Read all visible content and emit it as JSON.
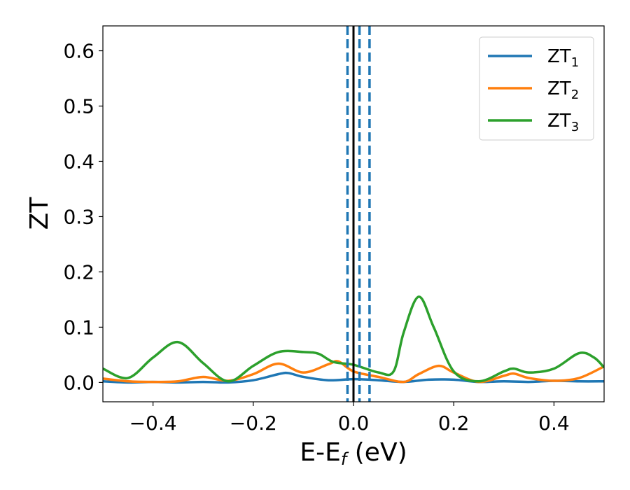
{
  "chart_data": {
    "type": "line",
    "xlabel": {
      "main": "E-E",
      "sub": "f",
      "unit": " (eV)"
    },
    "ylabel": "ZT",
    "xlim": [
      -0.5,
      0.5
    ],
    "ylim": [
      -0.035,
      0.645
    ],
    "xticks": [
      -0.4,
      -0.2,
      0.0,
      0.2,
      0.4
    ],
    "xtick_labels": [
      "−0.4",
      "−0.2",
      "0.0",
      "0.2",
      "0.4"
    ],
    "yticks": [
      0.0,
      0.1,
      0.2,
      0.3,
      0.4,
      0.5,
      0.6
    ],
    "ytick_labels": [
      "0.0",
      "0.1",
      "0.2",
      "0.3",
      "0.4",
      "0.5",
      "0.6"
    ],
    "grid": false,
    "legend_position": "top-right",
    "vlines": [
      {
        "x": 0.0,
        "style": "solid",
        "color": "#000000"
      },
      {
        "x": -0.012,
        "style": "dashed",
        "color": "#1f77b4"
      },
      {
        "x": 0.012,
        "style": "dashed",
        "color": "#1f77b4"
      },
      {
        "x": 0.032,
        "style": "dashed",
        "color": "#1f77b4"
      }
    ],
    "series": [
      {
        "name": "ZT",
        "name_sub": "1",
        "color": "#1f77b4",
        "x": [
          -0.5,
          -0.45,
          -0.4,
          -0.35,
          -0.3,
          -0.25,
          -0.2,
          -0.15,
          -0.13,
          -0.1,
          -0.05,
          0.0,
          0.05,
          0.1,
          0.15,
          0.2,
          0.25,
          0.3,
          0.35,
          0.4,
          0.45,
          0.5
        ],
        "y": [
          0.002,
          0.0,
          0.001,
          0.0,
          0.001,
          0.0,
          0.004,
          0.015,
          0.017,
          0.01,
          0.004,
          0.006,
          0.004,
          0.001,
          0.005,
          0.005,
          0.001,
          0.002,
          0.001,
          0.003,
          0.002,
          0.002
        ]
      },
      {
        "name": "ZT",
        "name_sub": "2",
        "color": "#ff7f0e",
        "x": [
          -0.5,
          -0.45,
          -0.4,
          -0.35,
          -0.3,
          -0.25,
          -0.2,
          -0.15,
          -0.1,
          -0.05,
          -0.03,
          0.0,
          0.05,
          0.1,
          0.13,
          0.17,
          0.2,
          0.25,
          0.3,
          0.32,
          0.35,
          0.4,
          0.45,
          0.5
        ],
        "y": [
          0.007,
          0.002,
          0.001,
          0.002,
          0.01,
          0.003,
          0.015,
          0.034,
          0.018,
          0.033,
          0.038,
          0.02,
          0.01,
          0.001,
          0.015,
          0.03,
          0.018,
          0.001,
          0.012,
          0.016,
          0.008,
          0.003,
          0.008,
          0.029
        ]
      },
      {
        "name": "ZT",
        "name_sub": "3",
        "color": "#2ca02c",
        "x": [
          -0.5,
          -0.45,
          -0.4,
          -0.35,
          -0.3,
          -0.25,
          -0.2,
          -0.15,
          -0.1,
          -0.07,
          -0.04,
          0.0,
          0.05,
          0.08,
          0.1,
          0.13,
          0.16,
          0.2,
          0.25,
          0.3,
          0.32,
          0.35,
          0.4,
          0.45,
          0.48,
          0.5
        ],
        "y": [
          0.025,
          0.008,
          0.045,
          0.073,
          0.035,
          0.002,
          0.03,
          0.055,
          0.055,
          0.052,
          0.037,
          0.032,
          0.018,
          0.02,
          0.09,
          0.155,
          0.1,
          0.02,
          0.002,
          0.02,
          0.025,
          0.018,
          0.025,
          0.053,
          0.045,
          0.027
        ]
      }
    ]
  }
}
